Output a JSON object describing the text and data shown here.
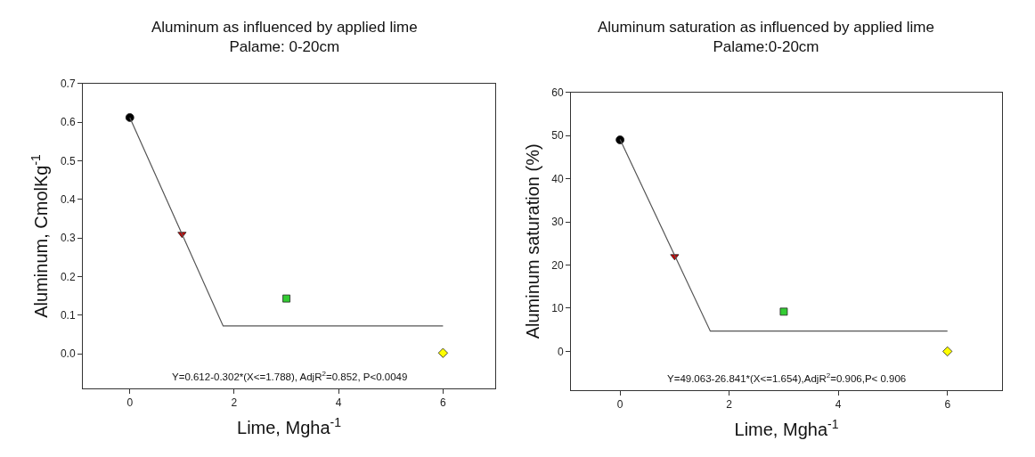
{
  "chart_data": [
    {
      "type": "scatter",
      "title": "Aluminum as influenced by applied lime",
      "subtitle": "Palame: 0-20cm",
      "xlabel": "Lime, Mgha$^{-1}$",
      "ylabel": "Aluminum, CmolKg$^{-1}$",
      "xlim": [
        -0.9,
        7
      ],
      "xticks": [
        0,
        2,
        4,
        6
      ],
      "ylim": [
        -0.09,
        0.7
      ],
      "yticks": [
        "0.0",
        0.1,
        0.2,
        0.3,
        0.4,
        0.5,
        0.6,
        0.7
      ],
      "series": [
        {
          "x": [
            0
          ],
          "values": [
            0.612
          ],
          "color": "#000000",
          "marker": "circle"
        },
        {
          "x": [
            1
          ],
          "values": [
            0.31
          ],
          "color": "#cc0000",
          "marker": "triangle"
        },
        {
          "x": [
            3
          ],
          "values": [
            0.143
          ],
          "color": "#33cc33",
          "marker": "square"
        },
        {
          "x": [
            6
          ],
          "values": [
            0.002
          ],
          "color": "#ffff00",
          "marker": "diamond"
        },
        {
          "type": "line",
          "x": [
            0,
            1.788,
            6
          ],
          "values": [
            0.612,
            0.072,
            0.072
          ],
          "color": "#555555",
          "marker": "none",
          "line_style": "solid"
        }
      ],
      "annotations": [
        "Y=0.612-0.302*(X<=1.788), AdjR$^{2}$=0.852, P<0.0049"
      ]
    },
    {
      "type": "scatter",
      "title": "Aluminum saturation as influenced by applied lime",
      "subtitle": "Palame:0-20cm",
      "xlabel": "Lime, Mgha$^{-1}$",
      "ylabel": "Aluminum saturation (%)",
      "xlim": [
        -0.9,
        7
      ],
      "xticks": [
        0,
        2,
        4,
        6
      ],
      "ylim": [
        -9,
        60
      ],
      "yticks": [
        0,
        10,
        20,
        30,
        40,
        50,
        60
      ],
      "series": [
        {
          "x": [
            0
          ],
          "values": [
            49
          ],
          "color": "#000000",
          "marker": "circle"
        },
        {
          "x": [
            1
          ],
          "values": [
            22
          ],
          "color": "#cc0000",
          "marker": "triangle"
        },
        {
          "x": [
            3
          ],
          "values": [
            9.2
          ],
          "color": "#33cc33",
          "marker": "square"
        },
        {
          "x": [
            6
          ],
          "values": [
            0
          ],
          "color": "#ffff00",
          "marker": "diamond"
        },
        {
          "type": "line",
          "x": [
            0,
            1.654,
            6
          ],
          "values": [
            49.1,
            4.7,
            4.7
          ],
          "color": "#555555",
          "marker": "none",
          "line_style": "solid"
        }
      ],
      "annotations": [
        "Y=49.063-26.841*(X<=1.654),AdjR$^{2}$=0.906,P< 0.906"
      ]
    }
  ]
}
